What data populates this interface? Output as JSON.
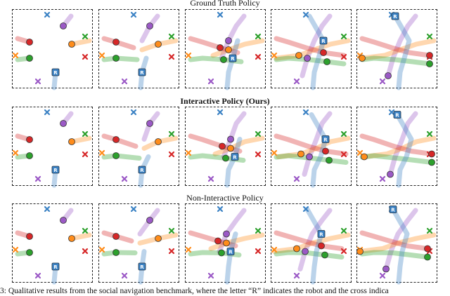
{
  "rows": [
    {
      "title": "Ground Truth Policy",
      "bold": false
    },
    {
      "title": "Interactive Policy (Ours)",
      "bold": true
    },
    {
      "title": "Non-Interactive Policy",
      "bold": false
    }
  ],
  "robot_label": "R",
  "caption": "3: Qualitative results from the social navigation benchmark, where the letter “R” indicates the robot and the cross indica",
  "colors": {
    "blue": "#3b82c4",
    "purple": "#9b59c6",
    "green": "#2ca02c",
    "orange": "#ff8c1a",
    "red": "#d62728",
    "panel_border": "#222222"
  }
}
